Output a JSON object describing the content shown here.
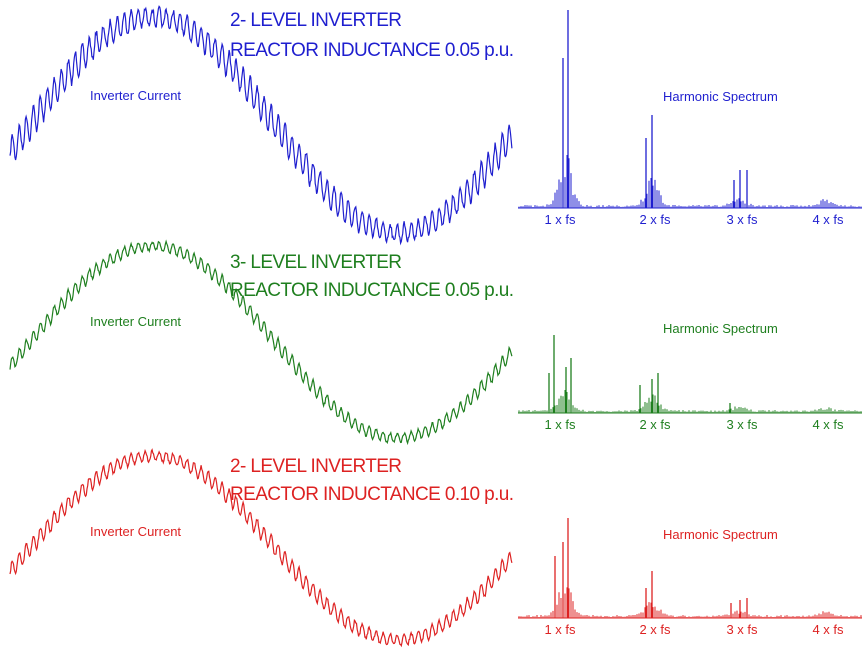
{
  "panels": [
    {
      "title": [
        "2- LEVEL INVERTER",
        "REACTOR INDUCTANCE 0.05 p.u."
      ],
      "waveform_label": "Inverter Current",
      "spectrum_label": "Harmonic Spectrum",
      "spectrum_ticks": [
        "1 x fs",
        "2 x fs",
        "3 x fs",
        "4 x fs"
      ],
      "color": "#1f1fcf"
    },
    {
      "title": [
        "3- LEVEL INVERTER",
        "REACTOR INDUCTANCE 0.05 p.u."
      ],
      "waveform_label": "Inverter Current",
      "spectrum_label": "Harmonic Spectrum",
      "spectrum_ticks": [
        "1 x fs",
        "2 x fs",
        "3 x fs",
        "4 x fs"
      ],
      "color": "#1f7f1f"
    },
    {
      "title": [
        "2- LEVEL INVERTER",
        "REACTOR INDUCTANCE 0.10 p.u."
      ],
      "waveform_label": "Inverter Current",
      "spectrum_label": "Harmonic Spectrum",
      "spectrum_ticks": [
        "1 x fs",
        "2 x fs",
        "3 x fs",
        "4 x fs"
      ],
      "color": "#dd2222"
    }
  ]
}
